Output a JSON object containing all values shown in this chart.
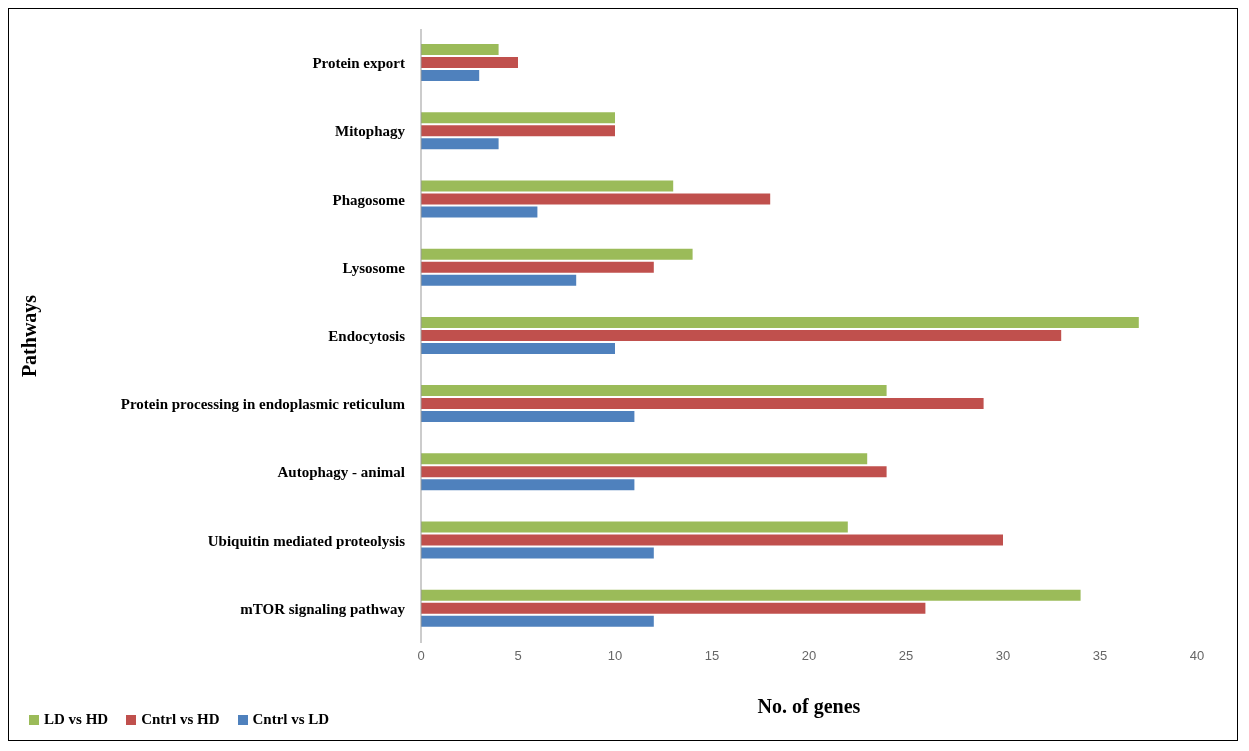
{
  "chart_data": {
    "type": "bar",
    "orientation": "horizontal",
    "xlabel": "No. of genes",
    "ylabel": "Pathways",
    "categories": [
      "Protein export",
      "Mitophagy",
      "Phagosome",
      "Lysosome",
      "Endocytosis",
      "Protein processing in endoplasmic reticulum",
      "Autophagy - animal",
      "Ubiquitin mediated proteolysis",
      "mTOR signaling pathway"
    ],
    "series": [
      {
        "name": "LD vs HD",
        "color": "#9bbb59",
        "values": [
          4,
          10,
          13,
          14,
          37,
          24,
          23,
          22,
          34
        ]
      },
      {
        "name": "Cntrl vs HD",
        "color": "#c0504d",
        "values": [
          5,
          10,
          18,
          12,
          33,
          29,
          24,
          30,
          26
        ]
      },
      {
        "name": "Cntrl vs LD",
        "color": "#4f81bd",
        "values": [
          3,
          4,
          6,
          8,
          10,
          11,
          11,
          12,
          12
        ]
      }
    ],
    "xlim": [
      0,
      40
    ],
    "xticks": [
      0,
      5,
      10,
      15,
      20,
      25,
      30,
      35,
      40
    ],
    "grid": false,
    "legend": "bottom left"
  }
}
